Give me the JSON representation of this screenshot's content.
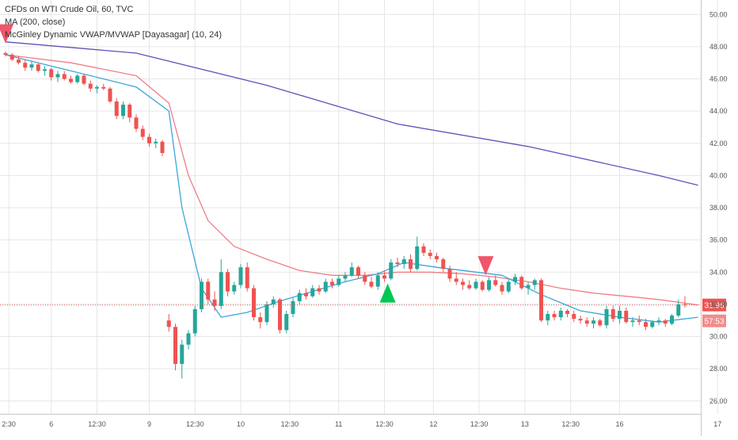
{
  "chart_data": {
    "type": "candlestick",
    "legend": {
      "title": "CFDs on WTI Crude Oil, 60, TVC",
      "indicator_1": "MA (200, close)",
      "indicator_2": "McGinley Dynamic VWAP/MVWAP [Dayasagar] (10, 24)"
    },
    "y_axis": {
      "side": "right",
      "ylim": [
        25.2,
        50.9
      ],
      "ticks": [
        "26.00",
        "28.00",
        "30.00",
        "32.00",
        "34.00",
        "36.00",
        "38.00",
        "40.00",
        "42.00",
        "44.00",
        "46.00",
        "48.00",
        "50.00"
      ]
    },
    "x_axis": {
      "ticks": [
        {
          "label": "2:30",
          "t": 0.5
        },
        {
          "label": "6",
          "t": 7
        },
        {
          "label": "12:30",
          "t": 14
        },
        {
          "label": "9",
          "t": 22
        },
        {
          "label": "12:30",
          "t": 29
        },
        {
          "label": "10",
          "t": 36
        },
        {
          "label": "12:30",
          "t": 43.5
        },
        {
          "label": "11",
          "t": 51
        },
        {
          "label": "12:30",
          "t": 58
        },
        {
          "label": "12",
          "t": 65.5
        },
        {
          "label": "12:30",
          "t": 72.5
        },
        {
          "label": "13",
          "t": 79.5
        },
        {
          "label": "12:30",
          "t": 86.5
        },
        {
          "label": "16",
          "t": 94
        },
        {
          "label": "17",
          "t": 109
        }
      ]
    },
    "current_price": {
      "value": 31.96,
      "label": "31.96",
      "color": "#ef5350"
    },
    "countdown": {
      "label": "57:53"
    },
    "colors": {
      "up": "#26a69a",
      "down": "#ef5350",
      "ma": "#5b55b8",
      "vwap": "#3aa6d9",
      "mvwap": "#f07d86",
      "buy_signal": "#00c853",
      "sell_signal": "#f0566a"
    },
    "candles": [
      [
        47.6,
        47.7,
        47.4,
        47.5
      ],
      [
        47.5,
        47.6,
        47.1,
        47.2
      ],
      [
        47.2,
        47.4,
        46.9,
        47.0
      ],
      [
        47.0,
        47.2,
        46.5,
        46.7
      ],
      [
        46.7,
        47.1,
        46.5,
        46.9
      ],
      [
        46.9,
        47.0,
        46.4,
        46.5
      ],
      [
        46.5,
        46.8,
        46.2,
        46.6
      ],
      [
        46.6,
        46.7,
        45.9,
        46.1
      ],
      [
        46.1,
        46.5,
        45.8,
        46.3
      ],
      [
        46.3,
        46.5,
        45.9,
        46.0
      ],
      [
        46.0,
        46.2,
        45.7,
        45.8
      ],
      [
        45.8,
        46.3,
        45.7,
        46.2
      ],
      [
        46.2,
        46.3,
        45.6,
        45.7
      ],
      [
        45.7,
        45.9,
        45.2,
        45.4
      ],
      [
        45.4,
        45.6,
        45.1,
        45.5
      ],
      [
        45.5,
        45.7,
        45.3,
        45.4
      ],
      [
        45.4,
        45.5,
        44.5,
        44.6
      ],
      [
        44.6,
        44.8,
        43.5,
        43.7
      ],
      [
        43.7,
        44.6,
        43.5,
        44.4
      ],
      [
        44.4,
        44.5,
        43.3,
        43.6
      ],
      [
        43.6,
        43.8,
        42.7,
        42.9
      ],
      [
        42.9,
        43.1,
        42.2,
        42.4
      ],
      [
        42.4,
        42.6,
        41.8,
        42.0
      ],
      [
        42.0,
        42.3,
        41.7,
        42.1
      ],
      [
        42.1,
        42.2,
        41.2,
        41.4
      ],
      [
        31.0,
        31.4,
        30.3,
        30.6
      ],
      [
        30.6,
        30.8,
        27.9,
        28.3
      ],
      [
        28.3,
        29.8,
        27.4,
        29.5
      ],
      [
        29.5,
        30.4,
        29.2,
        30.2
      ],
      [
        30.2,
        31.9,
        30.0,
        31.7
      ],
      [
        31.7,
        33.6,
        31.5,
        33.4
      ],
      [
        33.4,
        33.6,
        32.0,
        32.3
      ],
      [
        32.3,
        32.8,
        31.6,
        31.9
      ],
      [
        31.9,
        34.8,
        31.7,
        34.0
      ],
      [
        34.0,
        34.2,
        32.5,
        32.8
      ],
      [
        32.8,
        33.4,
        32.6,
        33.2
      ],
      [
        33.2,
        34.5,
        33.0,
        34.3
      ],
      [
        34.3,
        34.6,
        32.8,
        33.0
      ],
      [
        33.0,
        33.2,
        31.0,
        31.2
      ],
      [
        31.2,
        31.5,
        30.5,
        30.9
      ],
      [
        30.9,
        32.2,
        30.7,
        32.0
      ],
      [
        32.0,
        32.5,
        31.8,
        32.3
      ],
      [
        32.3,
        32.4,
        30.2,
        30.4
      ],
      [
        30.4,
        31.6,
        30.2,
        31.4
      ],
      [
        31.4,
        32.4,
        31.2,
        32.2
      ],
      [
        32.2,
        32.9,
        32.0,
        32.7
      ],
      [
        32.7,
        33.0,
        32.3,
        32.5
      ],
      [
        32.5,
        33.2,
        32.4,
        33.0
      ],
      [
        33.0,
        33.2,
        32.6,
        32.8
      ],
      [
        32.8,
        33.6,
        32.7,
        33.4
      ],
      [
        33.4,
        33.6,
        33.0,
        33.2
      ],
      [
        33.2,
        33.8,
        33.1,
        33.6
      ],
      [
        33.6,
        34.0,
        33.4,
        33.8
      ],
      [
        33.8,
        34.6,
        33.7,
        34.3
      ],
      [
        34.3,
        34.4,
        33.6,
        33.8
      ],
      [
        33.8,
        34.0,
        33.2,
        33.4
      ],
      [
        33.4,
        33.7,
        33.0,
        33.1
      ],
      [
        33.1,
        34.0,
        32.9,
        33.8
      ],
      [
        33.8,
        34.1,
        33.4,
        33.6
      ],
      [
        33.6,
        34.8,
        33.5,
        34.6
      ],
      [
        34.6,
        34.9,
        34.3,
        34.5
      ],
      [
        34.5,
        35.0,
        34.2,
        34.8
      ],
      [
        34.8,
        35.1,
        34.0,
        34.2
      ],
      [
        34.2,
        36.2,
        34.1,
        35.6
      ],
      [
        35.6,
        35.8,
        35.0,
        35.2
      ],
      [
        35.2,
        35.4,
        34.8,
        35.0
      ],
      [
        35.0,
        35.2,
        34.6,
        34.8
      ],
      [
        34.8,
        34.9,
        34.0,
        34.2
      ],
      [
        34.2,
        34.4,
        33.4,
        33.6
      ],
      [
        33.6,
        34.0,
        33.2,
        33.4
      ],
      [
        33.4,
        33.6,
        32.9,
        33.2
      ],
      [
        33.2,
        33.5,
        32.9,
        33.0
      ],
      [
        33.0,
        33.6,
        32.9,
        33.4
      ],
      [
        33.4,
        33.5,
        32.8,
        32.9
      ],
      [
        32.9,
        33.7,
        32.8,
        33.5
      ],
      [
        33.5,
        33.8,
        33.1,
        33.2
      ],
      [
        33.2,
        33.4,
        32.6,
        32.8
      ],
      [
        32.8,
        33.6,
        32.7,
        33.4
      ],
      [
        33.4,
        33.9,
        33.2,
        33.7
      ],
      [
        33.7,
        33.8,
        32.9,
        33.0
      ],
      [
        33.0,
        33.4,
        32.6,
        33.2
      ],
      [
        33.2,
        33.6,
        32.9,
        33.5
      ],
      [
        33.5,
        33.6,
        30.9,
        31.0
      ],
      [
        31.0,
        31.6,
        30.7,
        31.4
      ],
      [
        31.4,
        31.6,
        31.0,
        31.2
      ],
      [
        31.2,
        31.8,
        31.0,
        31.6
      ],
      [
        31.6,
        31.7,
        31.2,
        31.4
      ],
      [
        31.4,
        31.6,
        30.9,
        31.1
      ],
      [
        31.1,
        31.3,
        30.8,
        31.0
      ],
      [
        31.0,
        31.2,
        30.6,
        30.8
      ],
      [
        30.8,
        31.2,
        30.5,
        31.0
      ],
      [
        31.0,
        31.1,
        30.6,
        30.7
      ],
      [
        30.7,
        31.9,
        30.5,
        31.7
      ],
      [
        31.7,
        31.9,
        30.9,
        31.1
      ],
      [
        31.1,
        31.9,
        30.8,
        31.6
      ],
      [
        31.6,
        31.8,
        30.8,
        30.9
      ],
      [
        30.9,
        31.2,
        30.6,
        31.0
      ],
      [
        31.0,
        31.3,
        30.7,
        30.9
      ],
      [
        30.9,
        31.1,
        30.4,
        30.6
      ],
      [
        30.6,
        31.0,
        30.5,
        30.9
      ],
      [
        30.9,
        31.2,
        30.7,
        31.0
      ],
      [
        31.0,
        31.1,
        30.6,
        30.8
      ],
      [
        30.8,
        31.4,
        30.7,
        31.3
      ],
      [
        31.3,
        32.3,
        31.2,
        32.0
      ],
      [
        32.0,
        32.5,
        31.8,
        31.96
      ]
    ],
    "ma_200": {
      "t": [
        0,
        20,
        40,
        60,
        80,
        100,
        106
      ],
      "v": [
        48.3,
        47.6,
        45.6,
        43.2,
        41.8,
        40.0,
        39.4
      ]
    },
    "vwap": {
      "t": [
        0,
        10,
        20,
        25,
        27,
        30,
        33,
        37,
        42,
        47,
        52,
        57,
        61,
        66,
        70,
        76,
        82,
        88,
        94,
        100,
        106
      ],
      "v": [
        47.5,
        46.5,
        45.5,
        44.0,
        38.0,
        33.0,
        31.2,
        31.5,
        32.2,
        32.8,
        33.4,
        33.9,
        34.6,
        34.3,
        34.1,
        33.8,
        32.6,
        31.6,
        31.2,
        30.9,
        31.2
      ]
    },
    "mvwap": {
      "t": [
        0,
        10,
        20,
        25,
        28,
        31,
        35,
        40,
        45,
        50,
        55,
        60,
        65,
        70,
        75,
        80,
        85,
        90,
        95,
        100,
        106
      ],
      "v": [
        47.5,
        47.0,
        46.2,
        44.5,
        40.0,
        37.2,
        35.6,
        34.8,
        34.1,
        33.8,
        33.8,
        34.0,
        34.0,
        33.9,
        33.7,
        33.4,
        33.0,
        32.7,
        32.5,
        32.3,
        31.96
      ]
    },
    "signals": [
      {
        "type": "sell",
        "t": 0,
        "price": 48.8
      },
      {
        "type": "buy",
        "t": 58.5,
        "price": 32.7
      },
      {
        "type": "sell",
        "t": 73.5,
        "price": 34.4
      }
    ]
  }
}
